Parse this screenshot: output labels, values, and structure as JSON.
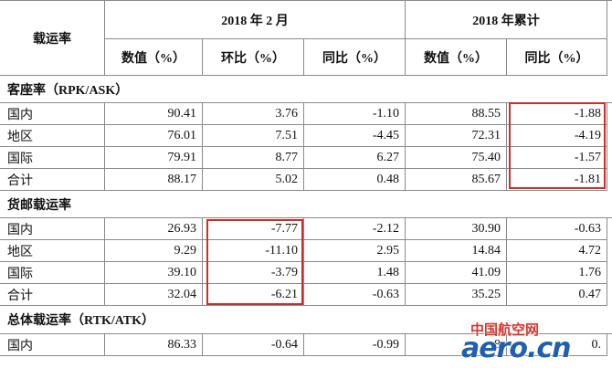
{
  "table": {
    "corner": "载运率",
    "group_headers": [
      "2018 年 2 月",
      "2018 年累计"
    ],
    "column_headers": [
      "数值（%）",
      "环比（%）",
      "同比（%）",
      "数值（%）",
      "同比（%）"
    ],
    "sections": [
      {
        "title": "客座率（RPK/ASK）",
        "rows": [
          [
            "国内",
            "90.41",
            "3.76",
            "-1.10",
            "88.55",
            "-1.88"
          ],
          [
            "地区",
            "76.01",
            "7.51",
            "-4.45",
            "72.31",
            "-4.19"
          ],
          [
            "国际",
            "79.91",
            "8.77",
            "6.27",
            "75.40",
            "-1.57"
          ],
          [
            "合计",
            "88.17",
            "5.02",
            "0.48",
            "85.67",
            "-1.81"
          ]
        ]
      },
      {
        "title": "货邮载运率",
        "rows": [
          [
            "国内",
            "26.93",
            "-7.77",
            "-2.12",
            "30.90",
            "-0.63"
          ],
          [
            "地区",
            "9.29",
            "-11.10",
            "2.95",
            "14.84",
            "4.72"
          ],
          [
            "国际",
            "39.10",
            "-3.79",
            "1.48",
            "41.09",
            "1.76"
          ],
          [
            "合计",
            "32.04",
            "-6.21",
            "-0.63",
            "35.25",
            "0.47"
          ]
        ]
      },
      {
        "title": "总体载运率（RTK/ATK）",
        "rows": [
          [
            "国内",
            "86.33",
            "-0.64",
            "-0.99",
            "8",
            "0."
          ]
        ]
      }
    ]
  },
  "watermark": {
    "brand_cn": "中国航空网",
    "brand_en": "aero.cn"
  }
}
